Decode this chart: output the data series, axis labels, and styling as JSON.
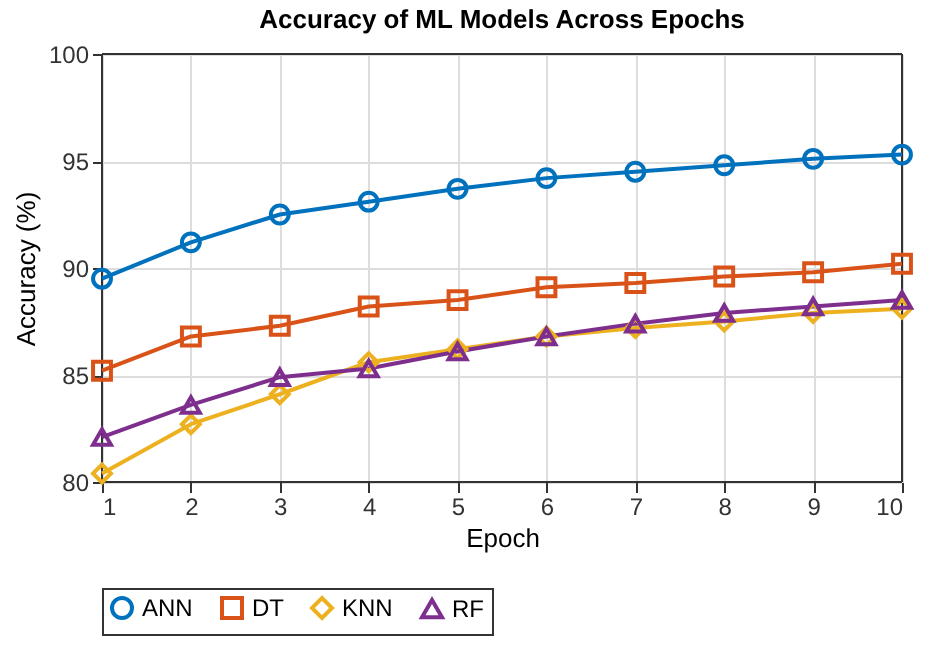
{
  "chart_data": {
    "type": "line",
    "title": "Accuracy of ML Models Across Epochs",
    "xlabel": "Epoch",
    "ylabel": "Accuracy (%)",
    "x": [
      1,
      2,
      3,
      4,
      5,
      6,
      7,
      8,
      9,
      10
    ],
    "series": [
      {
        "name": "ANN",
        "color": "#0072bd",
        "marker": "circle",
        "values": [
          89.5,
          91.2,
          92.5,
          93.1,
          93.7,
          94.2,
          94.5,
          94.8,
          95.1,
          95.3
        ]
      },
      {
        "name": "DT",
        "color": "#d95319",
        "marker": "square",
        "values": [
          85.2,
          86.8,
          87.3,
          88.2,
          88.5,
          89.1,
          89.3,
          89.6,
          89.8,
          90.2
        ]
      },
      {
        "name": "KNN",
        "color": "#edb120",
        "marker": "diamond",
        "values": [
          80.4,
          82.7,
          84.1,
          85.6,
          86.2,
          86.8,
          87.2,
          87.5,
          87.9,
          88.1
        ]
      },
      {
        "name": "RF",
        "color": "#7e2f8e",
        "marker": "triangle",
        "values": [
          82.1,
          83.6,
          84.9,
          85.3,
          86.1,
          86.8,
          87.4,
          87.9,
          88.2,
          88.5
        ]
      }
    ],
    "xlim": [
      1,
      10
    ],
    "xticks": [
      1,
      2,
      3,
      4,
      5,
      6,
      7,
      8,
      9,
      10
    ],
    "ylim": [
      80,
      100
    ],
    "yticks": [
      80,
      85,
      90,
      95,
      100
    ],
    "grid": true,
    "legend": "bottom",
    "line_style": "solid"
  }
}
